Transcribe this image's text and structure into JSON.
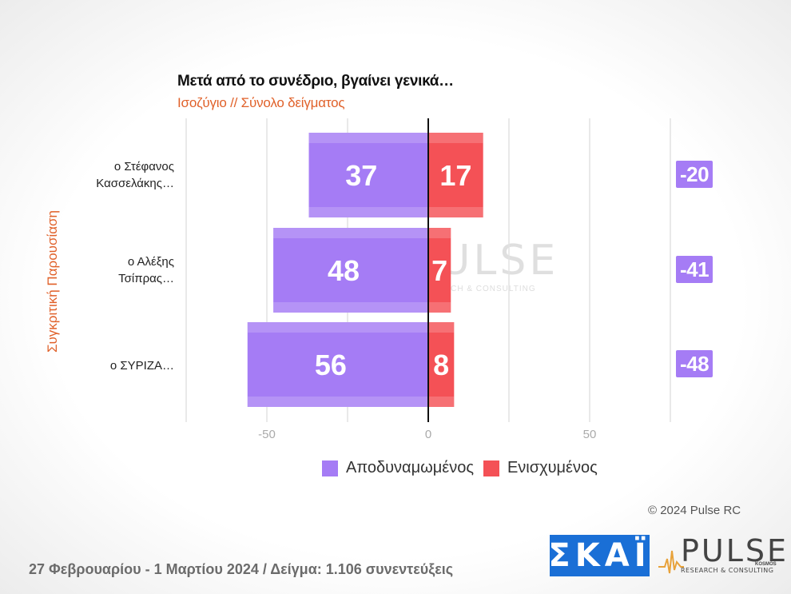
{
  "chart_data": {
    "type": "bar",
    "title": "Μετά από το συνέδριο, βγαίνει γενικά…",
    "subtitle": "Ισοζύγιο // Σύνολο δείγματος",
    "ylabel": "Συγκριτική Παρουσίαση",
    "categories": [
      [
        "ο Στέφανος",
        "Κασσελάκης…"
      ],
      [
        "ο Αλέξης",
        "Τσίπρας…"
      ],
      [
        "ο ΣΥΡΙΖΑ…"
      ]
    ],
    "series": [
      {
        "name": "Αποδυναμωμένος",
        "values": [
          37,
          48,
          56
        ],
        "color": "#a57cf5",
        "signed_values": [
          -37,
          -48,
          -56
        ]
      },
      {
        "name": "Ενισχυμένος",
        "values": [
          17,
          7,
          8
        ],
        "color": "#f45156"
      }
    ],
    "balance": [
      "-20",
      "-41",
      "-48"
    ],
    "xlim": [
      -75,
      75
    ],
    "xticks": [
      "-50",
      "0",
      "50"
    ],
    "xtick_values": [
      -50,
      0,
      50
    ],
    "grid": true,
    "legend_position": "bottom"
  },
  "copyright": "© 2024 Pulse RC",
  "footer": "27 Φεβρουαρίου - 1 Μαρτίου 2024  /  Δείγμα:  1.106 συνεντεύξεις",
  "logos": {
    "skai": "ΣΚΑΪ",
    "pulse": "PULSE",
    "pulse_sub": "RESEARCH & CONSULTING",
    "pulse_kosmos": "KOSMOS"
  },
  "watermark": {
    "word": "PULSE",
    "sub": "RESEARCH & CONSULTING"
  }
}
